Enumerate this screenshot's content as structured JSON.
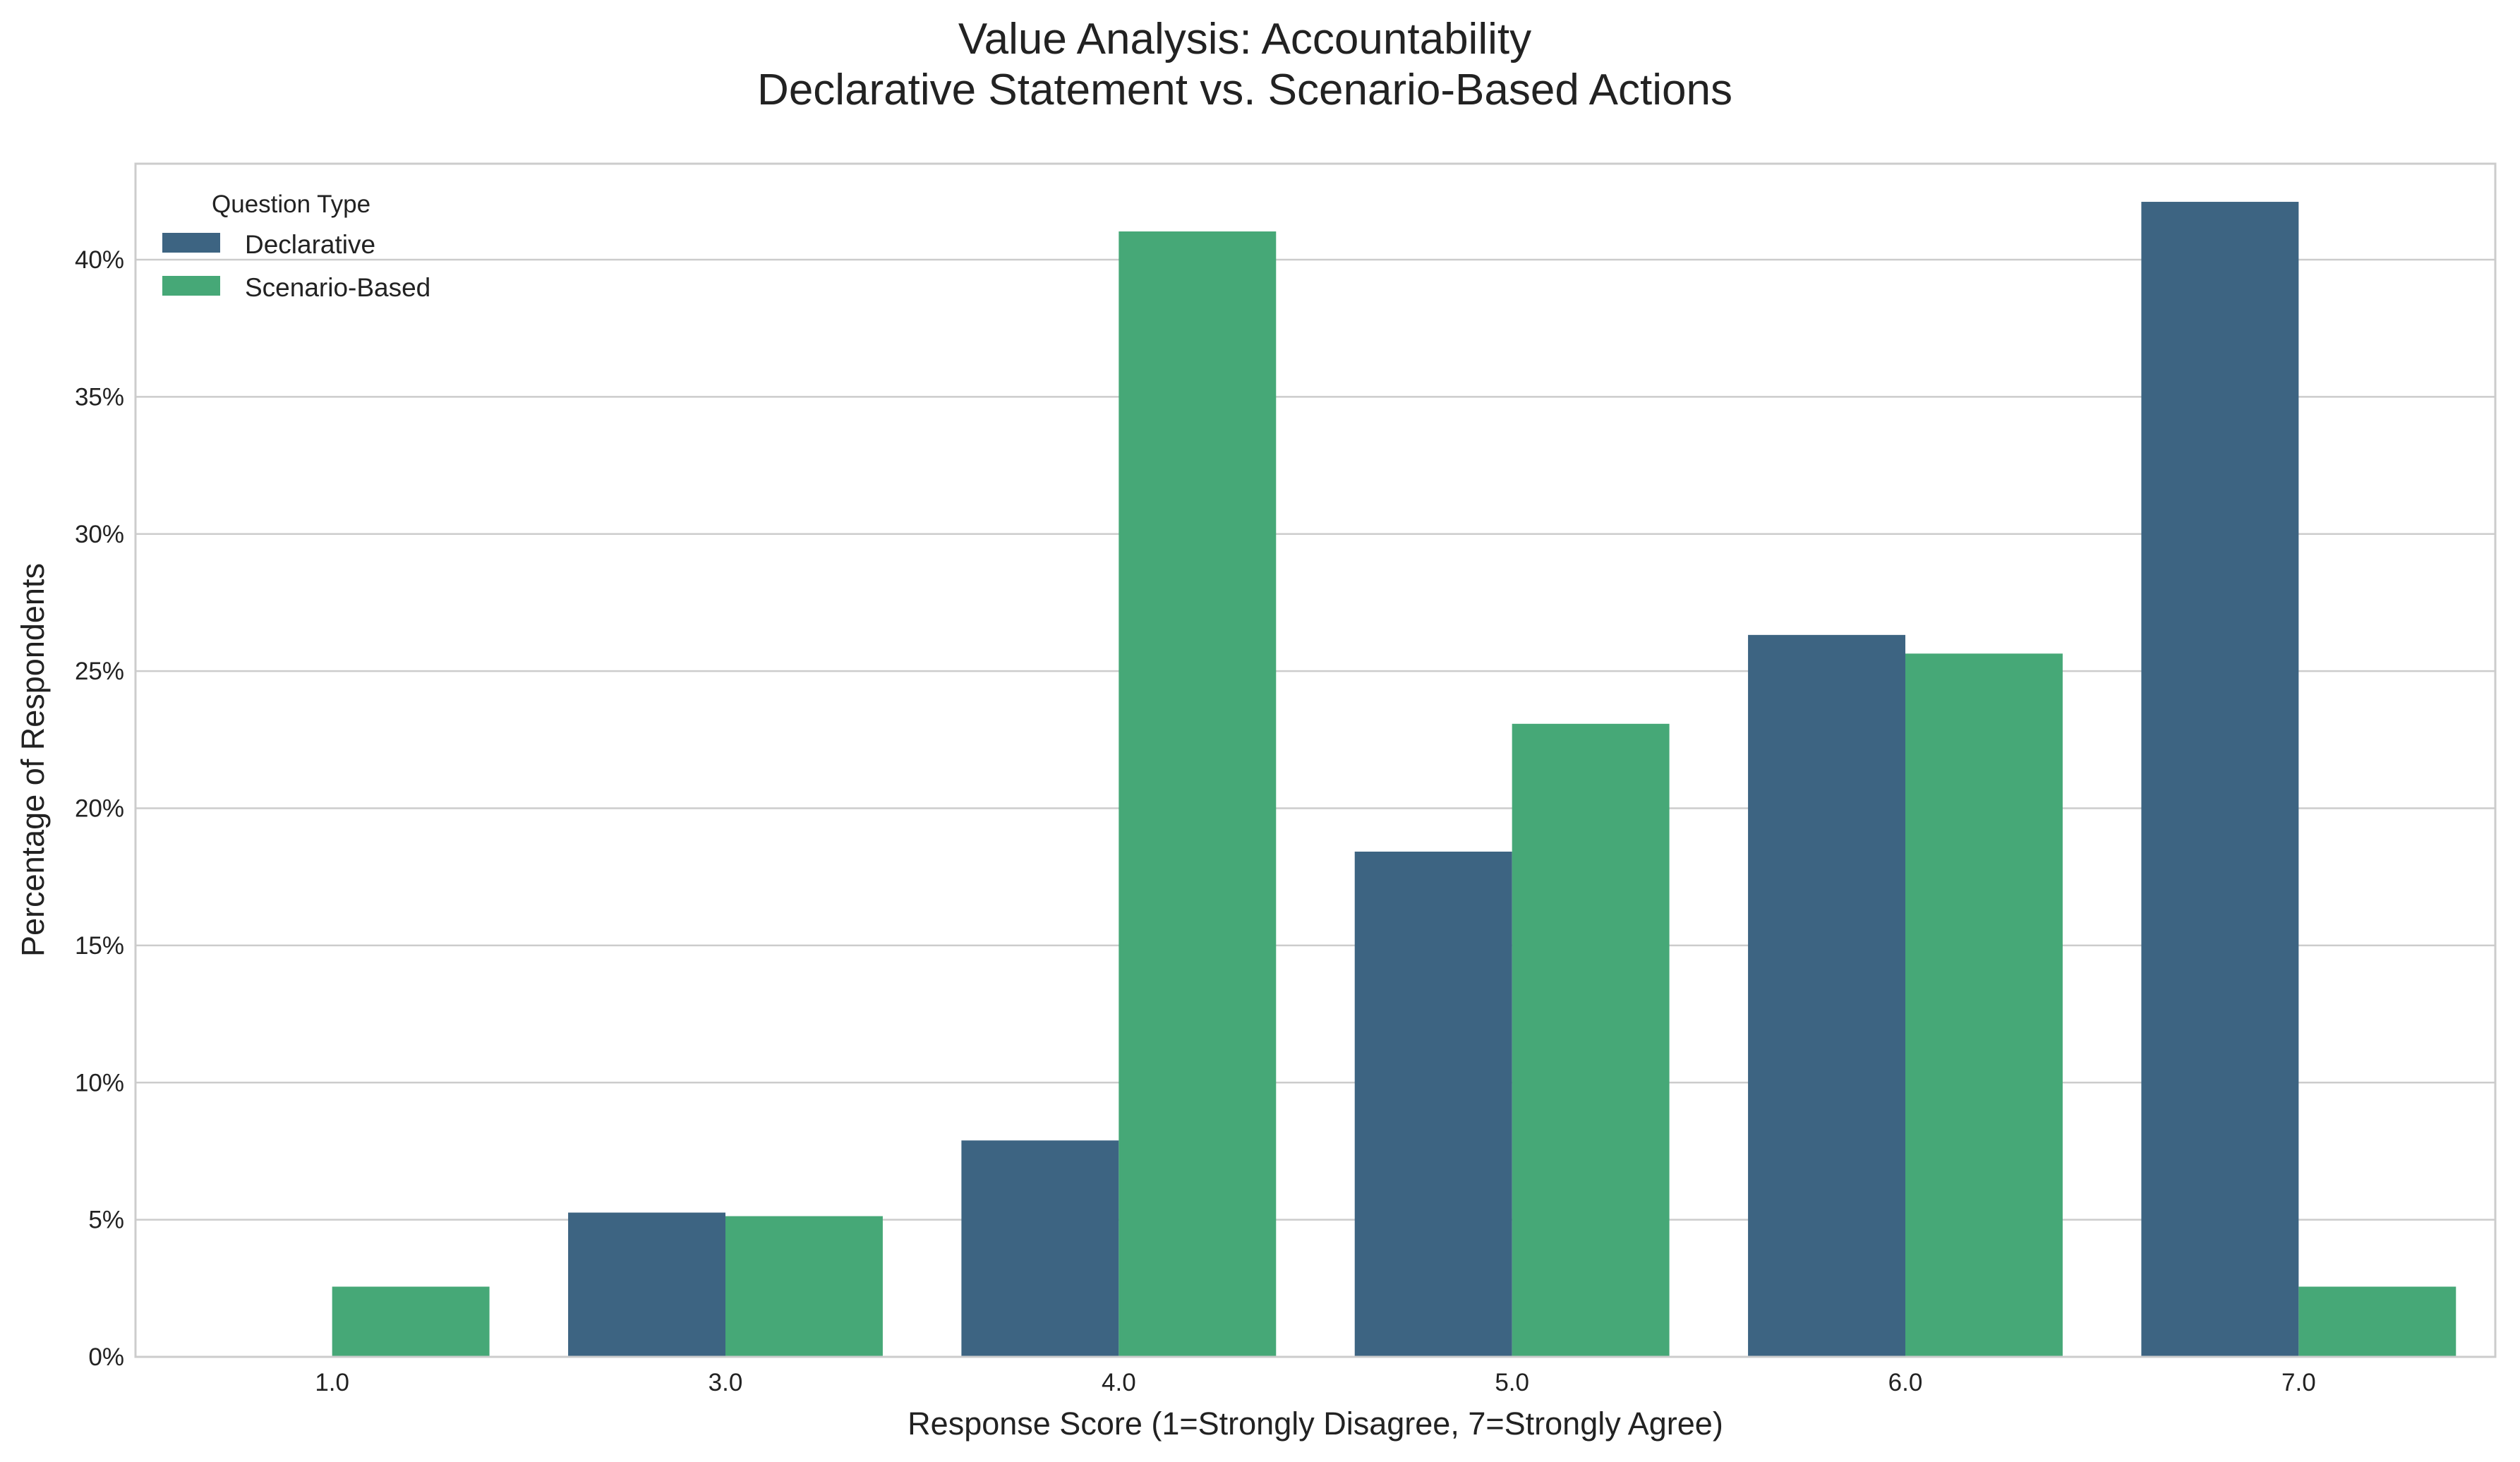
{
  "chart_data": {
    "type": "bar",
    "title": "Value Analysis: Accountability",
    "subtitle": "Declarative Statement vs. Scenario-Based Actions",
    "xlabel": "Response Score (1=Strongly Disagree, 7=Strongly Agree)",
    "ylabel": "Percentage of Respondents",
    "categories": [
      "1.0",
      "3.0",
      "4.0",
      "5.0",
      "6.0",
      "7.0"
    ],
    "ylim": [
      0,
      43.5
    ],
    "yticks": [
      0,
      5,
      10,
      15,
      20,
      25,
      30,
      35,
      40
    ],
    "ytick_labels": [
      "0%",
      "5%",
      "10%",
      "15%",
      "20%",
      "25%",
      "30%",
      "35%",
      "40%"
    ],
    "grid": true,
    "legend": {
      "title": "Question Type",
      "placement": "top-left"
    },
    "series": [
      {
        "name": "Declarative",
        "color": "#3d6482",
        "values": [
          0,
          5.26,
          7.89,
          18.42,
          26.32,
          42.11
        ]
      },
      {
        "name": "Scenario-Based",
        "color": "#46a877",
        "values": [
          2.56,
          5.13,
          41.03,
          23.08,
          25.64,
          2.56
        ]
      }
    ]
  }
}
